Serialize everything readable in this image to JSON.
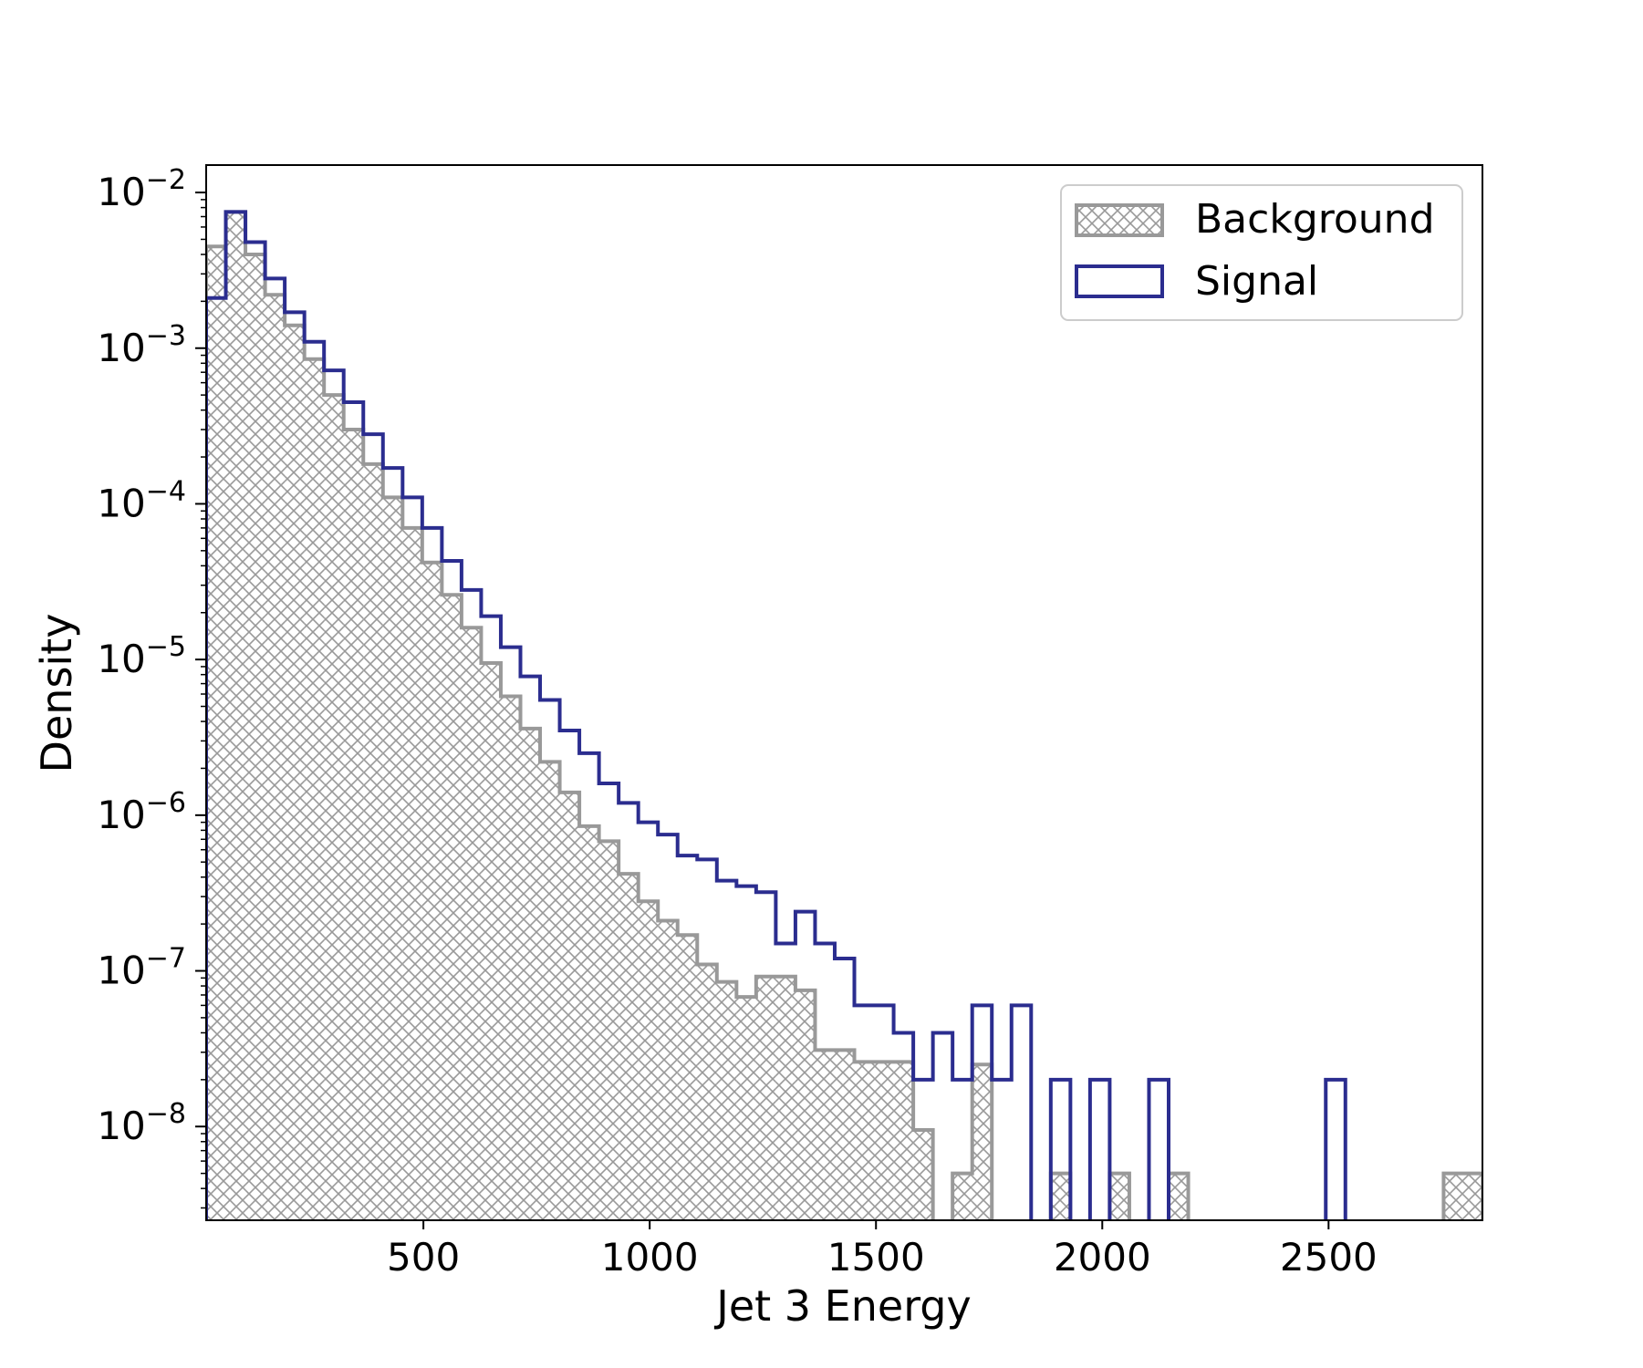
{
  "chart_data": {
    "type": "histogram",
    "xlabel": "Jet 3 Energy",
    "ylabel": "Density",
    "y_scale": "log",
    "xlim": [
      20,
      2840
    ],
    "ylim": [
      2.5e-09,
      0.015
    ],
    "x_ticks": [
      500,
      1000,
      1500,
      2000,
      2500
    ],
    "y_ticks": [
      {
        "value": 1e-08,
        "base": "10",
        "exp": "−8"
      },
      {
        "value": 1e-07,
        "base": "10",
        "exp": "−7"
      },
      {
        "value": 1e-06,
        "base": "10",
        "exp": "−6"
      },
      {
        "value": 1e-05,
        "base": "10",
        "exp": "−5"
      },
      {
        "value": 0.0001,
        "base": "10",
        "exp": "−4"
      },
      {
        "value": 0.001,
        "base": "10",
        "exp": "−3"
      },
      {
        "value": 0.01,
        "base": "10",
        "exp": "−2"
      }
    ],
    "grid": false,
    "legend_position": "top-right",
    "bin_width": 43.4,
    "bin_start": 20,
    "series": [
      {
        "name": "Background",
        "style": "hatched-step",
        "color": "#999999",
        "values": [
          0.0045,
          0.0075,
          0.004,
          0.0022,
          0.0014,
          0.00085,
          0.0005,
          0.0003,
          0.00018,
          0.00011,
          7e-05,
          4.2e-05,
          2.6e-05,
          1.6e-05,
          9.5e-06,
          5.8e-06,
          3.6e-06,
          2.2e-06,
          1.4e-06,
          8.5e-07,
          6.8e-07,
          4.2e-07,
          2.8e-07,
          2.1e-07,
          1.7e-07,
          1.1e-07,
          8.5e-08,
          6.8e-08,
          9.2e-08,
          9.2e-08,
          7.5e-08,
          3.1e-08,
          3.1e-08,
          2.6e-08,
          2.6e-08,
          2.6e-08,
          9.5e-09,
          0.0,
          5e-09,
          2.5e-08,
          0.0,
          0.0,
          0.0,
          5e-09,
          0.0,
          0.0,
          5e-09,
          0.0,
          0.0,
          5e-09,
          0.0,
          0.0,
          0.0,
          0.0,
          0.0,
          0.0,
          0.0,
          0.0,
          0.0,
          0.0,
          0.0,
          0.0,
          0.0,
          5e-09,
          5e-09
        ]
      },
      {
        "name": "Signal",
        "style": "step",
        "color": "#2b2d8f",
        "values": [
          0.0021,
          0.0075,
          0.0048,
          0.0028,
          0.0017,
          0.0011,
          0.00072,
          0.00045,
          0.00028,
          0.00017,
          0.00011,
          7e-05,
          4.3e-05,
          2.8e-05,
          1.9e-05,
          1.2e-05,
          7.8e-06,
          5.5e-06,
          3.5e-06,
          2.5e-06,
          1.6e-06,
          1.2e-06,
          9e-07,
          7.5e-07,
          5.5e-07,
          5.2e-07,
          3.8e-07,
          3.5e-07,
          3.2e-07,
          1.5e-07,
          2.4e-07,
          1.5e-07,
          1.2e-07,
          6e-08,
          6e-08,
          4e-08,
          2e-08,
          4e-08,
          2e-08,
          6e-08,
          2e-08,
          6e-08,
          0.0,
          2e-08,
          0.0,
          2e-08,
          0.0,
          0.0,
          2e-08,
          0.0,
          0.0,
          0.0,
          0.0,
          0.0,
          0.0,
          0.0,
          0.0,
          2e-08,
          0.0,
          0.0,
          0.0,
          0.0,
          0.0,
          0.0,
          0.0
        ]
      }
    ]
  }
}
